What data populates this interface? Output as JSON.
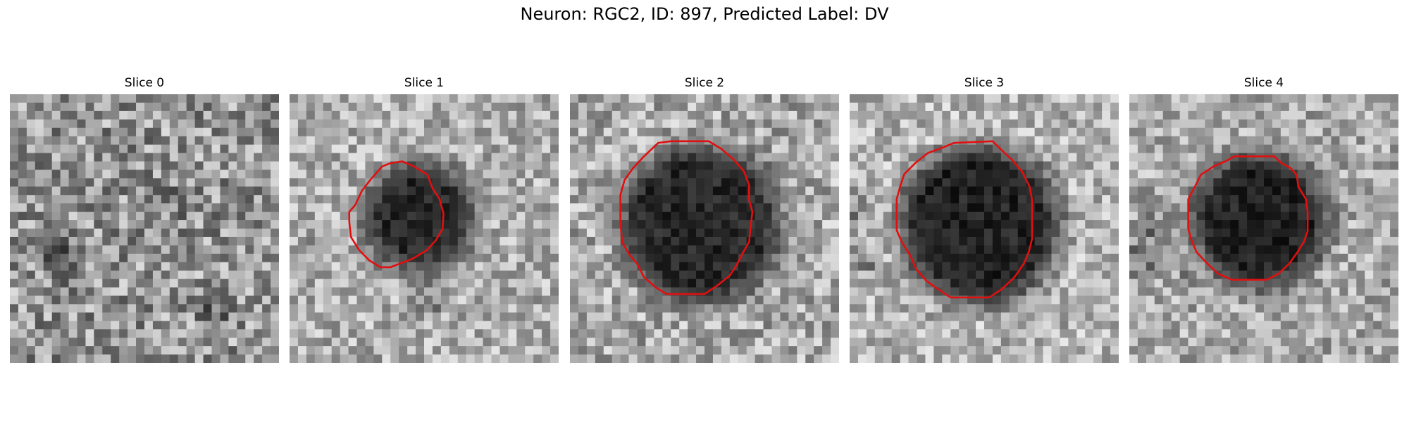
{
  "title": "Neuron: RGC2, ID: 897, Predicted Label: DV",
  "colors": {
    "contour": "#e01010"
  },
  "panels": [
    {
      "label": "Slice 0",
      "has_contour": false
    },
    {
      "label": "Slice 1",
      "has_contour": true
    },
    {
      "label": "Slice 2",
      "has_contour": true
    },
    {
      "label": "Slice 3",
      "has_contour": true
    },
    {
      "label": "Slice 4",
      "has_contour": true
    }
  ]
}
